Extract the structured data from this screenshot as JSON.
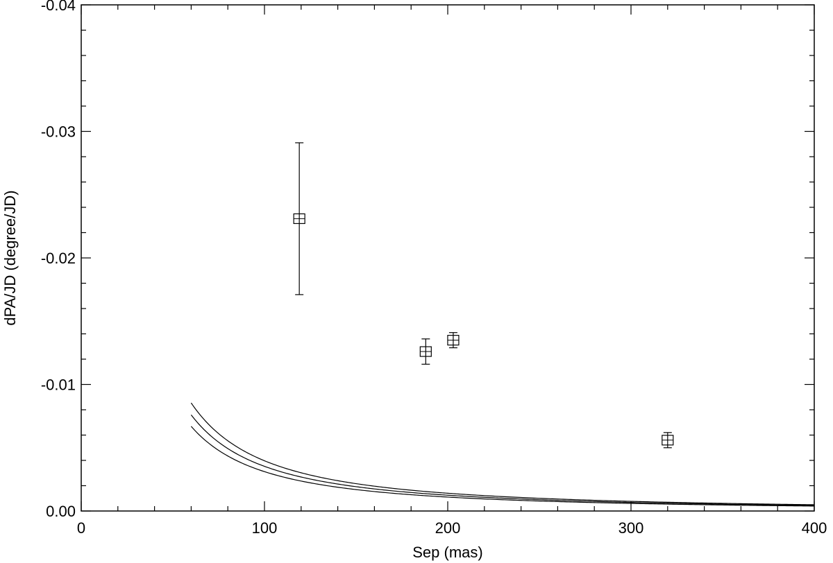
{
  "chart_data": {
    "type": "scatter",
    "title": "",
    "xlabel": "Sep (mas)",
    "ylabel": "dPA/JD (degree/JD)",
    "xlim": [
      0,
      400
    ],
    "ylim": [
      0.0,
      -0.04
    ],
    "x_ticks": [
      0,
      100,
      200,
      300,
      400
    ],
    "x_tick_labels": [
      "0",
      "100",
      "200",
      "300",
      "400"
    ],
    "y_ticks": [
      0.0,
      -0.01,
      -0.02,
      -0.03,
      -0.04
    ],
    "y_tick_labels": [
      "0.00",
      "-0.01",
      "-0.02",
      "-0.03",
      "-0.04"
    ],
    "grid": false,
    "legend": "none",
    "series": [
      {
        "marker": "square",
        "points": [
          {
            "x": 119,
            "y": -0.0231,
            "y_err_low": -0.0171,
            "y_err_high": -0.0291
          },
          {
            "x": 188,
            "y": -0.0126,
            "y_err_low": -0.0116,
            "y_err_high": -0.0136
          },
          {
            "x": 203,
            "y": -0.0135,
            "y_err_low": -0.0129,
            "y_err_high": -0.0141
          },
          {
            "x": 320,
            "y": -0.0056,
            "y_err_low": -0.005,
            "y_err_high": -0.0062
          }
        ]
      }
    ],
    "curves": [
      {
        "form": "y = k / x^1.5",
        "k": -3.97
      },
      {
        "form": "y = k / x^1.5",
        "k": -3.53
      },
      {
        "form": "y = k / x^1.5",
        "k": -3.11
      }
    ],
    "colors": {
      "line": "#000000",
      "marker": "#000000",
      "background": "#ffffff"
    }
  }
}
